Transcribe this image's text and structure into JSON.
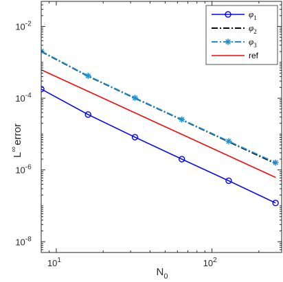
{
  "chart_data": {
    "type": "line",
    "xscale": "log",
    "yscale": "log",
    "xlabel": "N",
    "xlabel_sub": "0",
    "ylabel": "error",
    "ylabel_prefix": "L",
    "ylabel_sup": "∞",
    "xlim": [
      8,
      280
    ],
    "ylim": [
      5e-09,
      0.05
    ],
    "x_ticks": [
      {
        "value": 10,
        "base": "10",
        "exp": "1"
      },
      {
        "value": 100,
        "base": "10",
        "exp": "2"
      }
    ],
    "y_ticks": [
      {
        "value": 1e-08,
        "base": "10",
        "exp": "-8"
      },
      {
        "value": 1e-06,
        "base": "10",
        "exp": "-6"
      },
      {
        "value": 0.0001,
        "base": "10",
        "exp": "-4"
      },
      {
        "value": 0.01,
        "base": "10",
        "exp": "-2"
      }
    ],
    "grid": false,
    "legend_position": "top-right",
    "series": [
      {
        "name": "φ",
        "name_sub": "1",
        "color": "#0000ff",
        "line": "solid",
        "marker": "circle",
        "x": [
          8,
          16,
          32,
          64,
          128,
          256
        ],
        "y": [
          0.00018,
          3.5e-05,
          8.2e-06,
          2e-06,
          5e-07,
          1.2e-07
        ]
      },
      {
        "name": "φ",
        "name_sub": "2",
        "color": "#000000",
        "line": "dashdot",
        "marker": "none",
        "x": [
          8,
          16,
          32,
          64,
          128,
          256
        ],
        "y": [
          0.002,
          0.00041,
          0.0001,
          2.5e-05,
          6.1e-06,
          1.5e-06
        ]
      },
      {
        "name": "φ",
        "name_sub": "3",
        "color": "#1f8fd0",
        "line": "dashdot",
        "marker": "star",
        "x": [
          8,
          16,
          32,
          64,
          128,
          256
        ],
        "y": [
          0.00205,
          0.00042,
          0.000102,
          2.55e-05,
          6.3e-06,
          1.6e-06
        ]
      },
      {
        "name": "ref",
        "color": "#ff0000",
        "line": "solid",
        "marker": "none",
        "x": [
          8,
          256
        ],
        "y": [
          0.00062,
          6.2e-07
        ]
      }
    ]
  }
}
